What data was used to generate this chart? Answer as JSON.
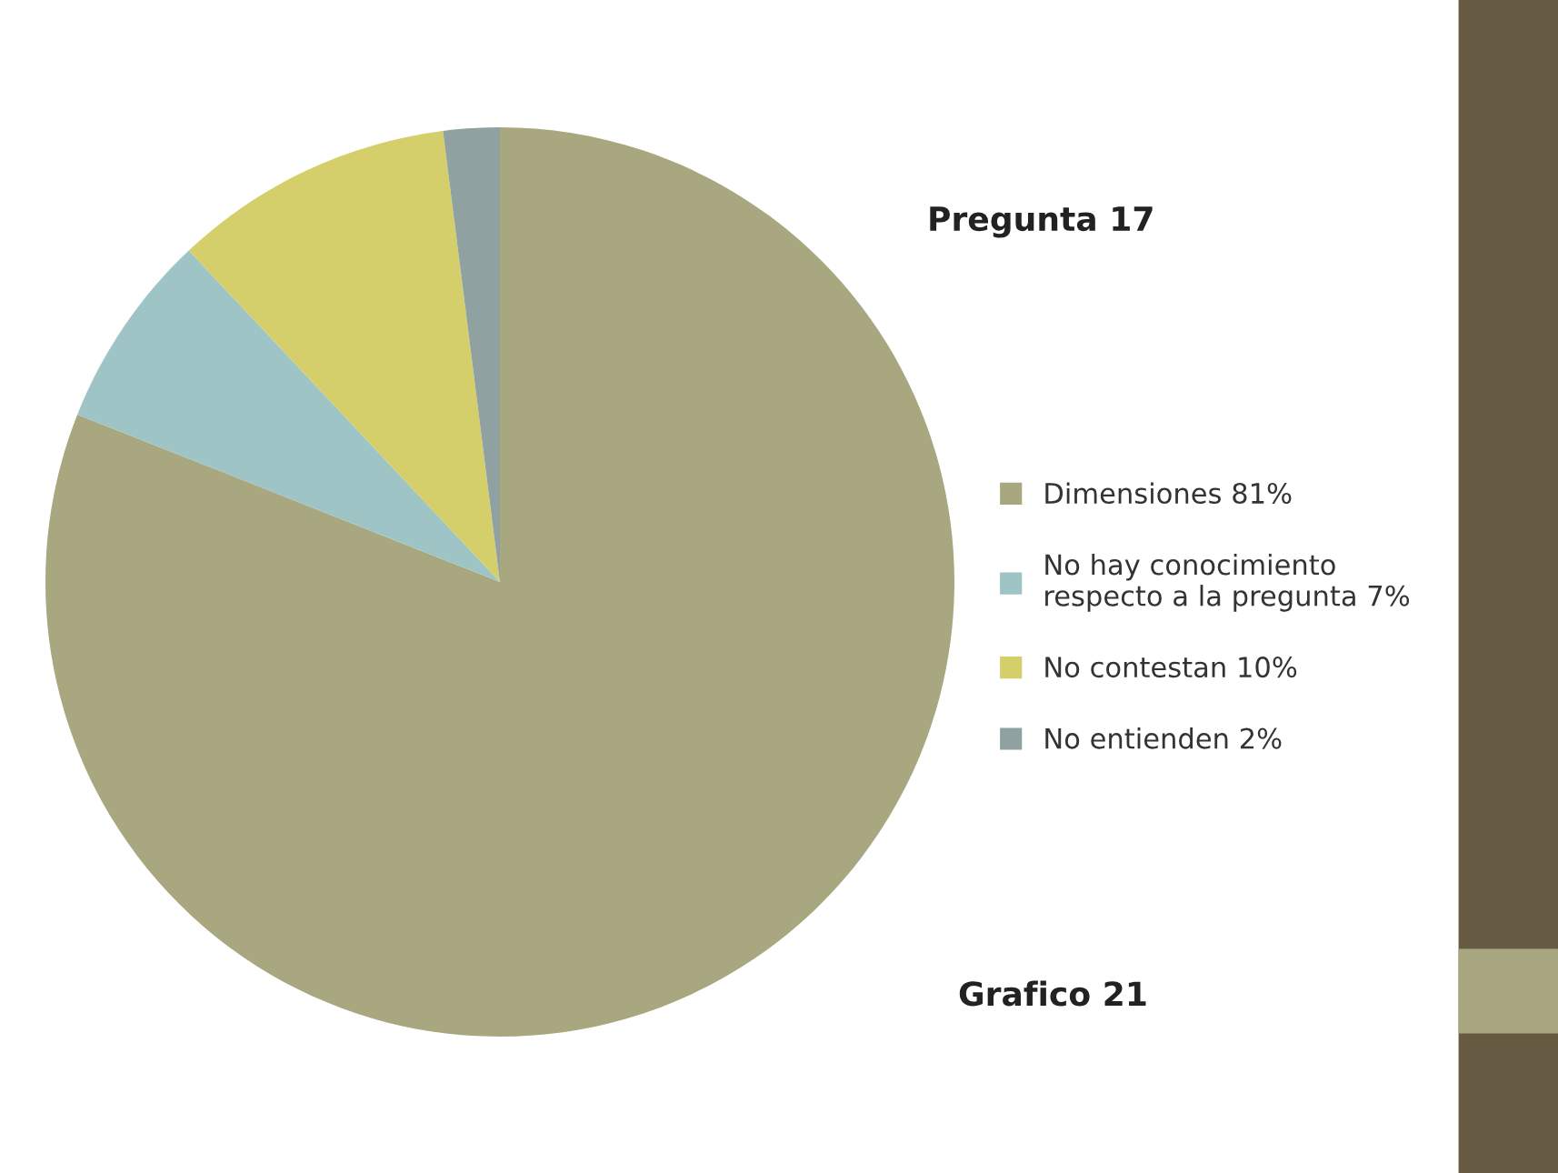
{
  "chart_data": {
    "type": "pie",
    "title": "Pregunta 17",
    "categories": [
      "Dimensiones 81%",
      "No hay conocimiento\nrespecto a la pregunta 7%",
      "No contestan 10%",
      "No entienden 2%"
    ],
    "values": [
      81,
      7,
      10,
      2
    ],
    "colors": [
      "#a8a77f",
      "#9ec4c5",
      "#d5cf6b",
      "#8fa1a1"
    ],
    "legend": "right",
    "annotations": [
      "Grafico 21"
    ]
  }
}
